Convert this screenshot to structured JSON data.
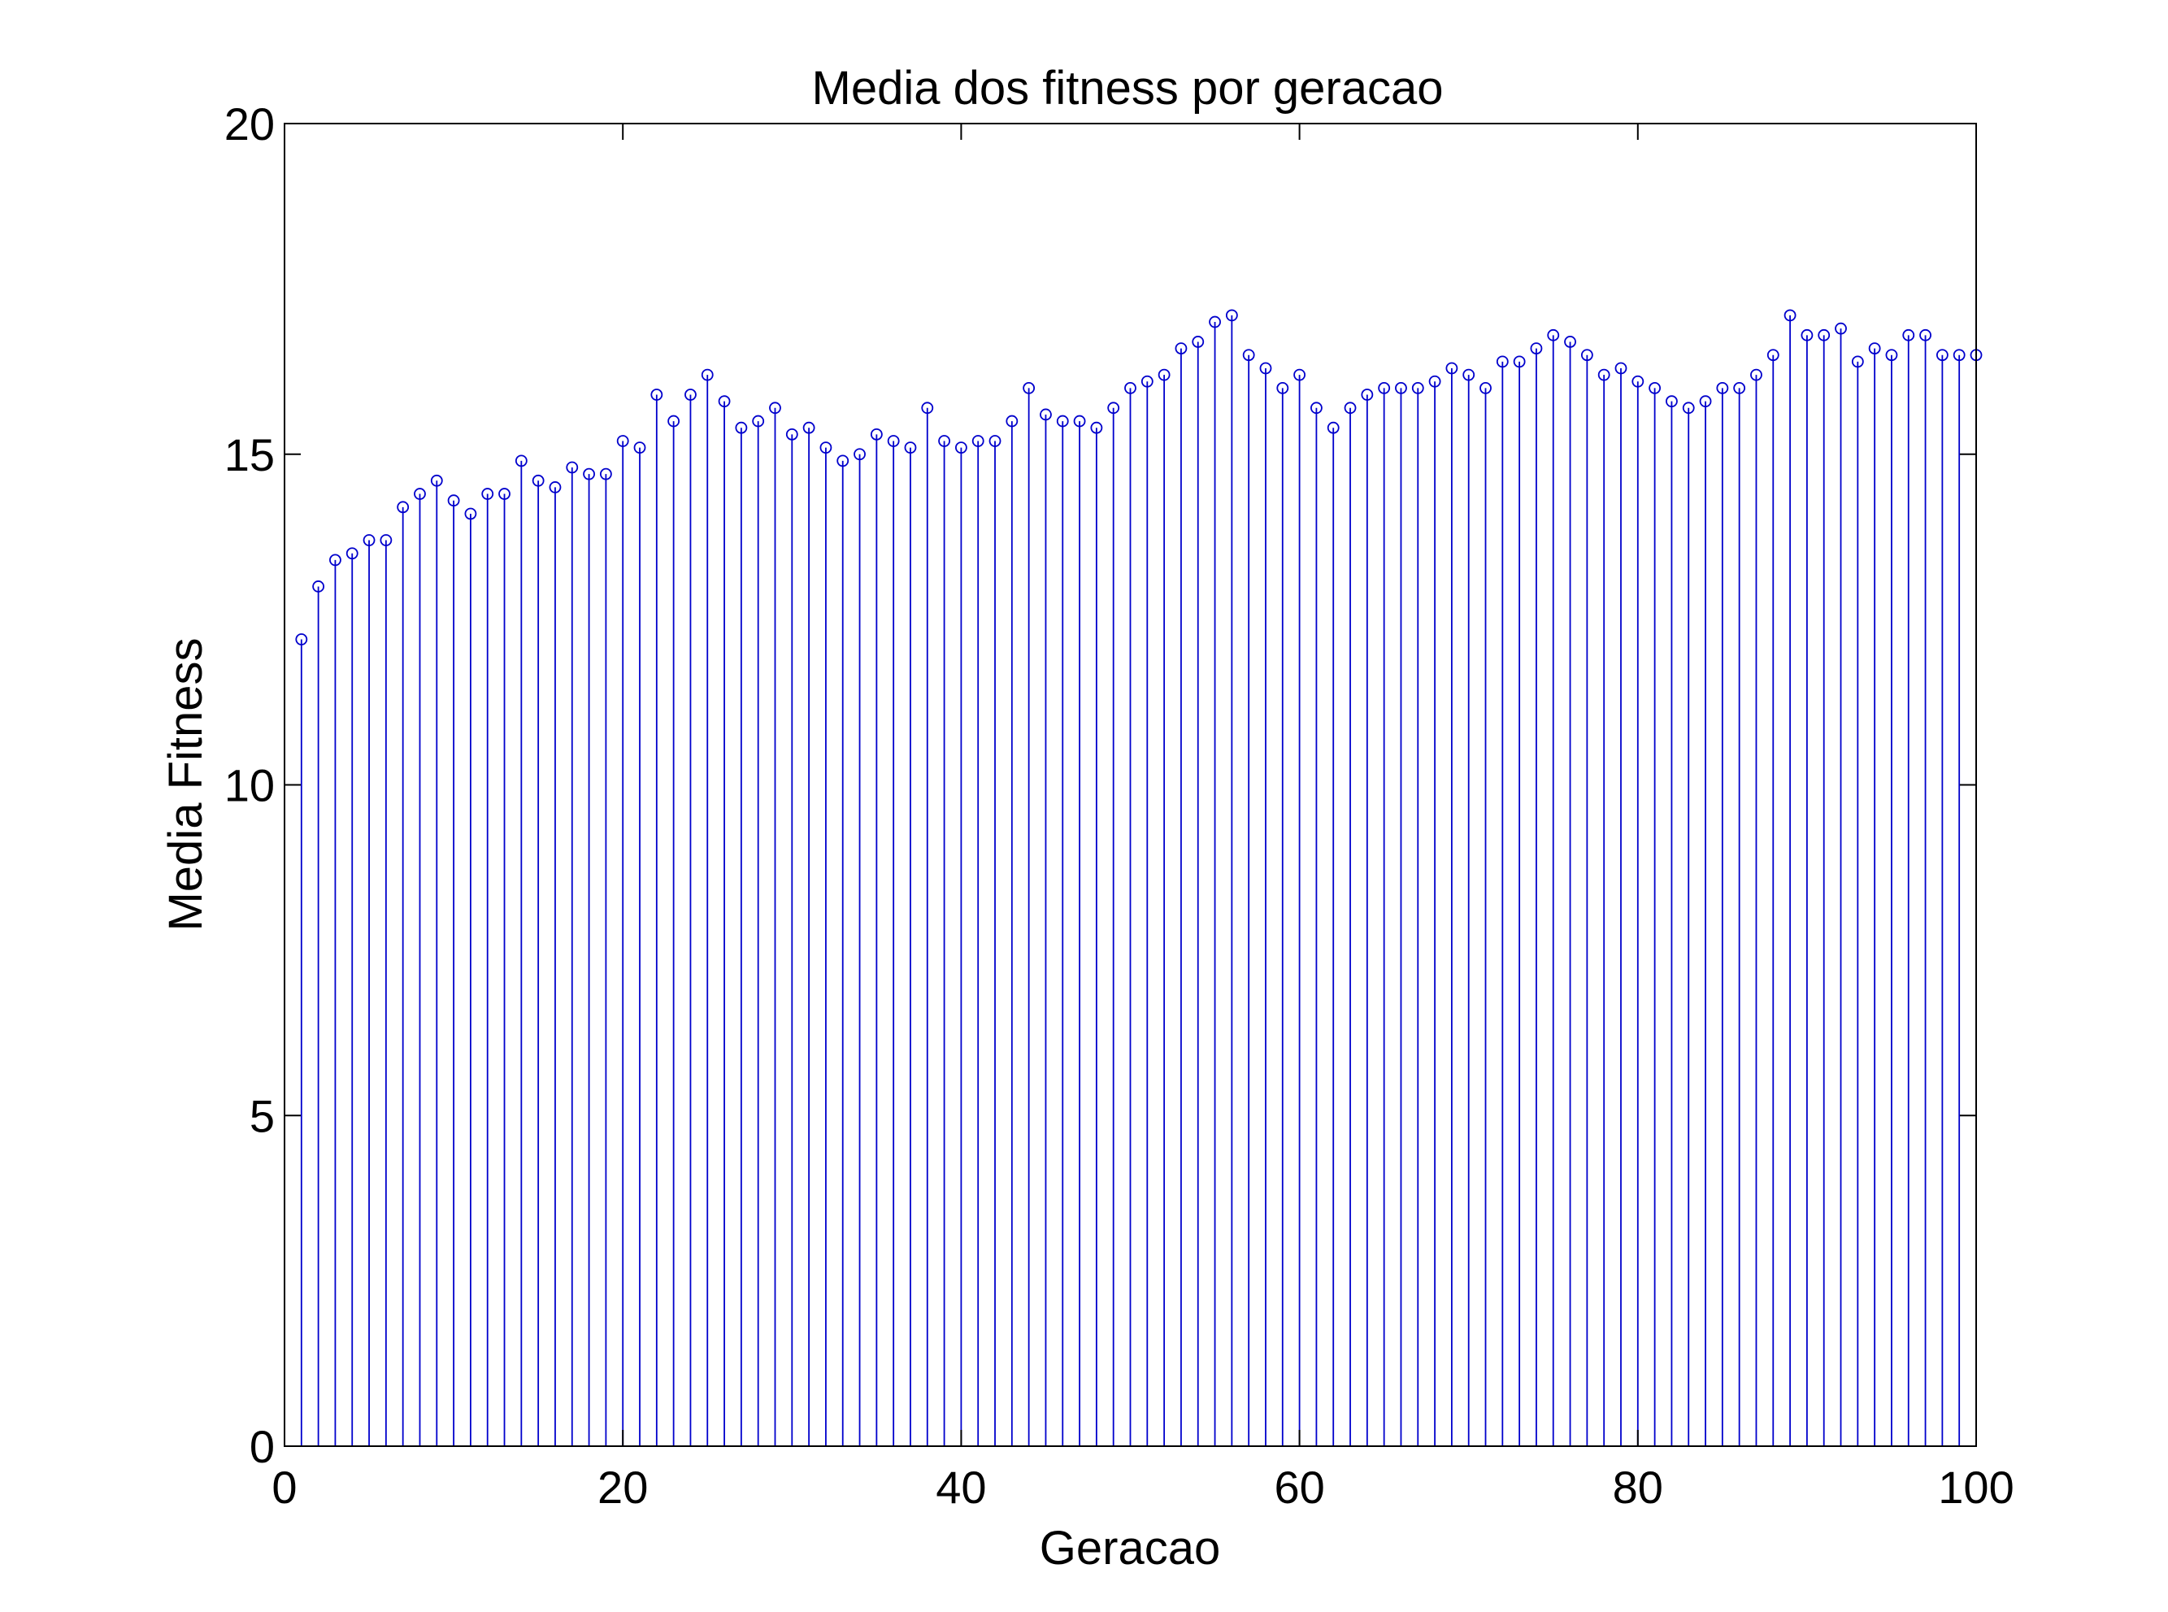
{
  "chart_data": {
    "type": "stem",
    "title": "Media dos fitness por geracao",
    "xlabel": "Geracao",
    "ylabel": "Media Fitness",
    "xlim": [
      0,
      100
    ],
    "ylim": [
      0,
      20
    ],
    "xticks": [
      0,
      20,
      40,
      60,
      80,
      100
    ],
    "xtick_labels": [
      "0",
      "20",
      "40",
      "60",
      "80",
      "100"
    ],
    "yticks": [
      0,
      5,
      10,
      15,
      20
    ],
    "ytick_labels": [
      "0",
      "5",
      "10",
      "15",
      "20"
    ],
    "grid": false,
    "box": true,
    "series_color": "#0000cc",
    "marker": "circle-open",
    "x": [
      1,
      2,
      3,
      4,
      5,
      6,
      7,
      8,
      9,
      10,
      11,
      12,
      13,
      14,
      15,
      16,
      17,
      18,
      19,
      20,
      21,
      22,
      23,
      24,
      25,
      26,
      27,
      28,
      29,
      30,
      31,
      32,
      33,
      34,
      35,
      36,
      37,
      38,
      39,
      40,
      41,
      42,
      43,
      44,
      45,
      46,
      47,
      48,
      49,
      50,
      51,
      52,
      53,
      54,
      55,
      56,
      57,
      58,
      59,
      60,
      61,
      62,
      63,
      64,
      65,
      66,
      67,
      68,
      69,
      70,
      71,
      72,
      73,
      74,
      75,
      76,
      77,
      78,
      79,
      80,
      81,
      82,
      83,
      84,
      85,
      86,
      87,
      88,
      89,
      90,
      91,
      92,
      93,
      94,
      95,
      96,
      97,
      98,
      99,
      100
    ],
    "y": [
      12.2,
      13.0,
      13.4,
      13.5,
      13.7,
      13.7,
      14.2,
      14.4,
      14.6,
      14.3,
      14.1,
      14.4,
      14.4,
      14.9,
      14.6,
      14.5,
      14.8,
      14.7,
      14.7,
      15.2,
      15.1,
      15.9,
      15.5,
      15.9,
      16.2,
      15.8,
      15.4,
      15.5,
      15.7,
      15.3,
      15.4,
      15.1,
      14.9,
      15.0,
      15.3,
      15.2,
      15.1,
      15.7,
      15.2,
      15.1,
      15.2,
      15.2,
      15.5,
      16.0,
      15.6,
      15.5,
      15.5,
      15.4,
      15.7,
      16.0,
      16.1,
      16.2,
      16.6,
      16.7,
      17.0,
      17.1,
      16.5,
      16.3,
      16.0,
      16.2,
      15.7,
      15.4,
      15.7,
      15.9,
      16.0,
      16.0,
      16.0,
      16.1,
      16.3,
      16.2,
      16.0,
      16.4,
      16.4,
      16.6,
      16.8,
      16.7,
      16.5,
      16.2,
      16.3,
      16.1,
      16.0,
      15.8,
      15.7,
      15.8,
      16.0,
      16.0,
      16.2,
      16.5,
      17.1,
      16.8,
      16.8,
      16.9,
      16.4,
      16.6,
      16.5,
      16.8,
      16.8,
      16.5,
      16.5,
      16.5
    ]
  }
}
